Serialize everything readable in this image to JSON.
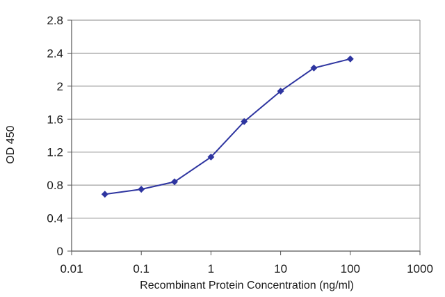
{
  "chart_data": {
    "type": "line",
    "title": "",
    "xlabel": "Recombinant Protein Concentration (ng/ml)",
    "ylabel": "OD 450",
    "x_scale": "log",
    "xlim": [
      0.01,
      1000
    ],
    "ylim": [
      0,
      2.8
    ],
    "x_ticks": [
      "0.01",
      "0.1",
      "1",
      "10",
      "100",
      "1000"
    ],
    "y_ticks": [
      "0",
      "0.4",
      "0.8",
      "1.2",
      "1.6",
      "2",
      "2.4",
      "2.8"
    ],
    "grid": "horizontal",
    "legend": "none",
    "series": [
      {
        "x": [
          0.03,
          0.1,
          0.3,
          1,
          3,
          10,
          30,
          100
        ],
        "y": [
          0.69,
          0.75,
          0.84,
          1.14,
          1.57,
          1.94,
          2.22,
          2.33
        ],
        "color": "#2e35a0"
      }
    ]
  }
}
